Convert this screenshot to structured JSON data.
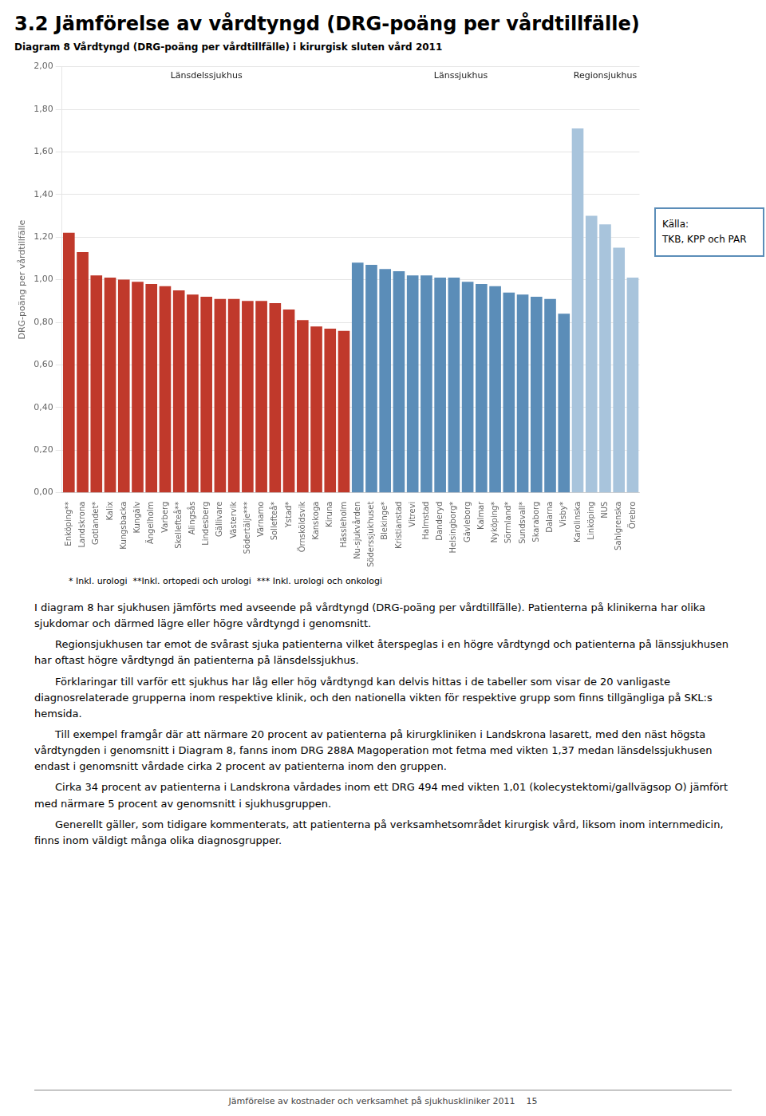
{
  "chart_data": {
    "type": "bar",
    "title": "3.2 Jämförelse av vårdtyngd (DRG-poäng per vårdtillfälle)",
    "subtitle": "Diagram 8 Vårdtyngd (DRG-poäng per vårdtillfälle) i kirurgisk sluten vård 2011",
    "ylabel": "DRG-poäng per vårdtillfälle",
    "categories": [
      "Enköping**",
      "Landskrona",
      "Gotlandet*",
      "Kalix",
      "Kungsbacka",
      "Kungälv",
      "Ängelholm",
      "Varberg",
      "Skellefteå**",
      "Alingsås",
      "Lindesberg",
      "Gällivare",
      "Västervik",
      "Södertälje***",
      "Värnamo",
      "Sollefteå*",
      "Ystad*",
      "Örnsköldsvik",
      "Kanskoga",
      "Kiruna",
      "Hässleholm",
      "Nu-sjukvården",
      "Söderssjukhuset",
      "Blekinge*",
      "Kristianstad",
      "Vitrevi",
      "Halmstad",
      "Danderyd",
      "Helsingborg*",
      "Gävleborg",
      "Kalmar",
      "Nyköping*",
      "Sörmland*",
      "Sundsvall*",
      "Skaraborg",
      "Dalarna",
      "Visby*",
      "Karolinska",
      "Linköping",
      "NUS",
      "Sahlgrenska",
      "Örebro"
    ],
    "series": [
      {
        "name": "Länsdelssjukhus",
        "color": "#c0392b",
        "values": [
          1.22,
          1.13,
          1.02,
          1.01,
          1.0,
          0.99,
          0.98,
          0.97,
          0.95,
          0.93,
          0.92,
          0.91,
          0.91,
          0.9,
          0.9,
          0.89,
          0.86,
          0.81,
          0.78,
          0.77,
          0.76,
          null,
          null,
          null,
          null,
          null,
          null,
          null,
          null,
          null,
          null,
          null,
          null,
          null,
          null,
          null,
          null,
          null,
          null,
          null,
          null,
          null
        ]
      },
      {
        "name": "Länssjukhus",
        "color": "#5b8db8",
        "values": [
          null,
          null,
          null,
          null,
          null,
          null,
          null,
          null,
          null,
          null,
          null,
          null,
          null,
          null,
          null,
          null,
          null,
          null,
          null,
          null,
          null,
          1.08,
          1.07,
          1.05,
          1.04,
          1.02,
          1.02,
          1.01,
          1.01,
          0.99,
          0.98,
          0.97,
          0.94,
          0.93,
          0.92,
          0.91,
          0.84,
          null,
          null,
          null,
          null,
          null
        ]
      },
      {
        "name": "Regionsjukhus",
        "color": "#a8c4dc",
        "values": [
          null,
          null,
          null,
          null,
          null,
          null,
          null,
          null,
          null,
          null,
          null,
          null,
          null,
          null,
          null,
          null,
          null,
          null,
          null,
          null,
          null,
          null,
          null,
          null,
          null,
          null,
          null,
          null,
          null,
          null,
          null,
          null,
          null,
          null,
          null,
          null,
          null,
          1.71,
          1.3,
          1.26,
          1.15,
          1.01
        ]
      }
    ],
    "ylim": [
      0.0,
      2.0
    ],
    "yticks": [
      {
        "value": 0.0,
        "label": "0,00"
      },
      {
        "value": 0.2,
        "label": "0,20"
      },
      {
        "value": 0.4,
        "label": "0,40"
      },
      {
        "value": 0.6,
        "label": "0,60"
      },
      {
        "value": 0.8,
        "label": "0,80"
      },
      {
        "value": 1.0,
        "label": "1,00"
      },
      {
        "value": 1.2,
        "label": "1,20"
      },
      {
        "value": 1.4,
        "label": "1,40"
      },
      {
        "value": 1.6,
        "label": "1,60"
      },
      {
        "value": 1.8,
        "label": "1,80"
      },
      {
        "value": 2.0,
        "label": "2,00"
      }
    ],
    "grid": true,
    "source": [
      "Källa:",
      "TKB, KPP och PAR"
    ],
    "footnote": "* Inkl. urologi  **Inkl. ortopedi och urologi  *** Inkl. urologi och onkologi",
    "body_text": [
      "I diagram 8 har sjukhusen jämförts med avseende på vårdtyngd (DRG-poäng per vårdtillfälle). Patienterna på klinikerna har olika sjukdomar och därmed lägre eller högre vårdtyngd i genomsnitt.",
      "Regionsjukhusen tar emot de svårast sjuka patienterna vilket återspeglas i en högre vårdtyngd och patienterna på länssjukhusen har oftast högre vårdtyngd än patienterna på länsdelssjukhus.",
      "Förklaringar till varför ett sjukhus har låg eller hög vårdtyngd kan delvis hittas i de tabeller som visar de 20 vanligaste diagnosrelaterade grupperna inom respektive klinik, och den nationella vikten för respektive grupp som finns tillgängliga på SKL:s hemsida.",
      "Till exempel framgår där att närmare 20 procent av patienterna på kirurgkliniken i Landskrona lasarett, med den näst högsta vårdtyngden i genomsnitt i Diagram 8, fanns inom DRG 288A Magoperation mot fetma med vikten 1,37 medan länsdelssjukhusen endast i genomsnitt vårdade cirka 2 procent av patienterna inom den gruppen.",
      "Cirka 34 procent av patienterna i Landskrona vårdades inom ett DRG 494 med vikten 1,01 (kolecystektomi/gallvägsop O) jämfört med närmare 5 procent av genomsnitt i sjukhusgruppen.",
      "Generellt gäller, som tidigare kommenterats, att patienterna på verksamhetsområdet kirurgisk vård, liksom inom internmedicin, finns inom väldigt många olika diagnosgrupper."
    ],
    "footer_text": "Jämförelse av kostnader och verksamhet på sjukhuskliniker 2011    15"
  }
}
